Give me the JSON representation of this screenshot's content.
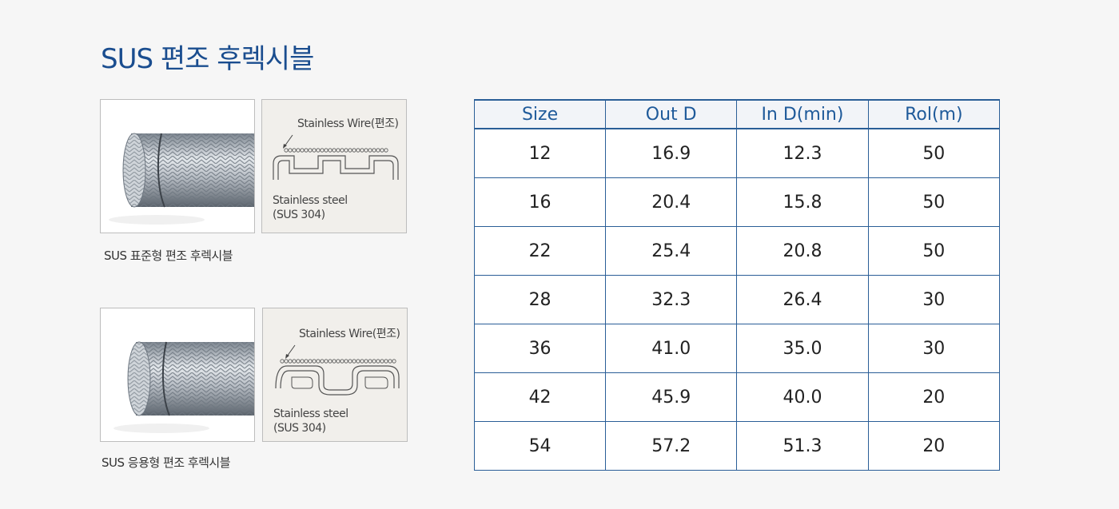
{
  "title": "SUS 편조 후렉시블",
  "products": [
    {
      "caption": "SUS 표준형 편조 후렉시블",
      "wire_label": "Stainless Wire(편조)",
      "steel_label_1": "Stainless steel",
      "steel_label_2": "(SUS 304)"
    },
    {
      "caption": "SUS 응용형 편조 후렉시블",
      "wire_label": "Stainless Wire(편조)",
      "steel_label_1": "Stainless steel",
      "steel_label_2": "(SUS 304)"
    }
  ],
  "table": {
    "headers": [
      "Size",
      "Out D",
      "In D(min)",
      "Rol(m)"
    ],
    "rows": [
      [
        "12",
        "16.9",
        "12.3",
        "50"
      ],
      [
        "16",
        "20.4",
        "15.8",
        "50"
      ],
      [
        "22",
        "25.4",
        "20.8",
        "50"
      ],
      [
        "28",
        "32.3",
        "26.4",
        "30"
      ],
      [
        "36",
        "41.0",
        "35.0",
        "30"
      ],
      [
        "42",
        "45.9",
        "40.0",
        "20"
      ],
      [
        "54",
        "57.2",
        "51.3",
        "20"
      ]
    ]
  },
  "colors": {
    "title": "#1a4d8f",
    "table_border": "#2a5e97",
    "header_text": "#1f5a9a"
  }
}
